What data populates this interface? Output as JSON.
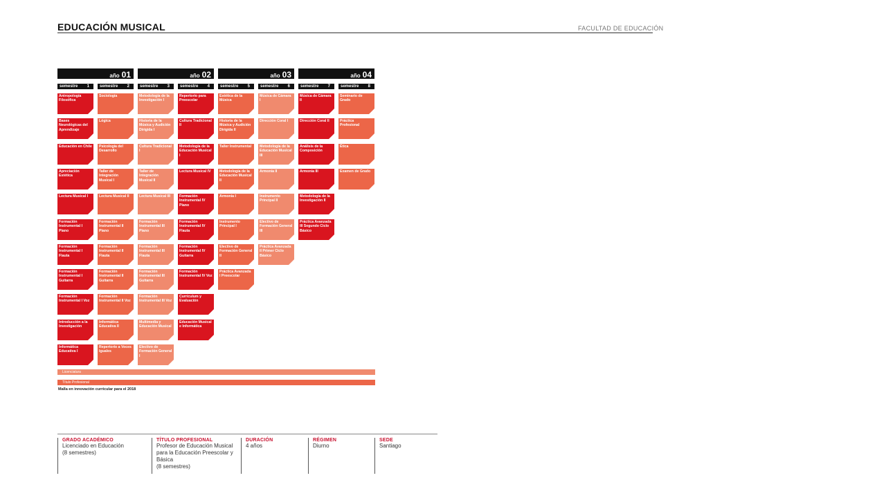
{
  "header": {
    "title": "EDUCACIÓN MUSICAL",
    "faculty": "FACULTAD DE EDUCACIÓN"
  },
  "years": [
    {
      "label": "año",
      "num": "01"
    },
    {
      "label": "año",
      "num": "02"
    },
    {
      "label": "año",
      "num": "03"
    },
    {
      "label": "año",
      "num": "04"
    }
  ],
  "semesters": [
    {
      "label": "semestre",
      "num": "1"
    },
    {
      "label": "semestre",
      "num": "2"
    },
    {
      "label": "semestre",
      "num": "3"
    },
    {
      "label": "semestre",
      "num": "4"
    },
    {
      "label": "semestre",
      "num": "5"
    },
    {
      "label": "semestre",
      "num": "6"
    },
    {
      "label": "semestre",
      "num": "7"
    },
    {
      "label": "semestre",
      "num": "8"
    }
  ],
  "colors": {
    "red": "#d9151f",
    "orange": "#ec6648",
    "salmon": "#f08a6e"
  },
  "curriculum": [
    [
      {
        "name": "Antropología Filosófica",
        "tone": "red"
      },
      {
        "name": "Bases Neurológicas del Aprendizaje",
        "tone": "red"
      },
      {
        "name": "Educación en Chile",
        "tone": "red"
      },
      {
        "name": "Apreciación Estética",
        "tone": "red"
      },
      {
        "name": "Lectura Musical I",
        "tone": "red"
      },
      {
        "name": "Formación Instrumental I Piano",
        "tone": "red"
      },
      {
        "name": "Formación Instrumental I Flauta",
        "tone": "red"
      },
      {
        "name": "Formación Instrumental I Guitarra",
        "tone": "red"
      },
      {
        "name": "Formación Instrumental I Voz",
        "tone": "red"
      },
      {
        "name": "Introducción a la Investigación",
        "tone": "red"
      },
      {
        "name": "Informática Educativa I",
        "tone": "red"
      }
    ],
    [
      {
        "name": "Sociología",
        "tone": "orange"
      },
      {
        "name": "Lógica",
        "tone": "orange"
      },
      {
        "name": "Psicología del Desarrollo",
        "tone": "orange"
      },
      {
        "name": "Taller de Integración Musical I",
        "tone": "orange"
      },
      {
        "name": "Lectura Musical II",
        "tone": "orange"
      },
      {
        "name": "Formación Instrumental II Piano",
        "tone": "orange"
      },
      {
        "name": "Formación Instrumental II Flauta",
        "tone": "orange"
      },
      {
        "name": "Formación Instrumental II Guitarra",
        "tone": "orange"
      },
      {
        "name": "Formación Instrumental II Voz",
        "tone": "orange"
      },
      {
        "name": "Informática Educativa II",
        "tone": "orange"
      },
      {
        "name": "Repertorio a Voces Iguales",
        "tone": "orange"
      }
    ],
    [
      {
        "name": "Metodología de la Investigación I",
        "tone": "salmon"
      },
      {
        "name": "Historia de la Música y Audición Dirigida I",
        "tone": "salmon"
      },
      {
        "name": "Cultura Tradicional I",
        "tone": "salmon"
      },
      {
        "name": "Taller de Integración Musical II",
        "tone": "salmon"
      },
      {
        "name": "Lectura Musical III",
        "tone": "salmon"
      },
      {
        "name": "Formación Instrumental III Piano",
        "tone": "salmon"
      },
      {
        "name": "Formación Instrumental III Flauta",
        "tone": "salmon"
      },
      {
        "name": "Formación Instrumental III Guitarra",
        "tone": "salmon"
      },
      {
        "name": "Formación Instrumental III Voz",
        "tone": "salmon"
      },
      {
        "name": "Multimedia y Educación Musical",
        "tone": "salmon"
      },
      {
        "name": "Electivo de Formación General I",
        "tone": "salmon"
      }
    ],
    [
      {
        "name": "Repertorio para Preescolar",
        "tone": "red"
      },
      {
        "name": "Cultura Tradicional II",
        "tone": "red"
      },
      {
        "name": "Metodología de la Educación Musical I",
        "tone": "red"
      },
      {
        "name": "Lectura Musical IV",
        "tone": "red"
      },
      {
        "name": "Formación Instrumental IV Piano",
        "tone": "red"
      },
      {
        "name": "Formación Instrumental IV Flauta",
        "tone": "red"
      },
      {
        "name": "Formación Instrumental IV Guitarra",
        "tone": "red"
      },
      {
        "name": "Formación Instrumental IV Voz",
        "tone": "red"
      },
      {
        "name": "Currículum y Evaluación",
        "tone": "red"
      },
      {
        "name": "Educación Musical e Informática",
        "tone": "red"
      }
    ],
    [
      {
        "name": "Estética de la Música",
        "tone": "orange"
      },
      {
        "name": "Historia de la Música y Audición Dirigida II",
        "tone": "orange"
      },
      {
        "name": "Taller Instrumental",
        "tone": "orange"
      },
      {
        "name": "Metodología de la Educación Musical II",
        "tone": "orange"
      },
      {
        "name": "Armonía I",
        "tone": "orange"
      },
      {
        "name": "Instrumento Principal I",
        "tone": "orange"
      },
      {
        "name": "Electivo de Formación General II",
        "tone": "orange"
      },
      {
        "name": "Práctica Avanzada I Preescolar",
        "tone": "orange"
      }
    ],
    [
      {
        "name": "Música de Cámara I",
        "tone": "salmon"
      },
      {
        "name": "Dirección Coral I",
        "tone": "salmon"
      },
      {
        "name": "Metodología de la Educación Musical III",
        "tone": "salmon"
      },
      {
        "name": "Armonía II",
        "tone": "salmon"
      },
      {
        "name": "Instrumento Principal II",
        "tone": "salmon"
      },
      {
        "name": "Electivo de Formación General III",
        "tone": "salmon"
      },
      {
        "name": "Práctica Avanzada II Primer Ciclo Básico",
        "tone": "salmon"
      }
    ],
    [
      {
        "name": "Música de Cámara II",
        "tone": "red"
      },
      {
        "name": "Dirección Coral II",
        "tone": "red"
      },
      {
        "name": "Análisis de la Composición",
        "tone": "red"
      },
      {
        "name": "Armonía III",
        "tone": "red"
      },
      {
        "name": "Metodología de la Investigación II",
        "tone": "red"
      },
      {
        "name": "Práctica Avanzada III Segundo Ciclo Básico",
        "tone": "red"
      }
    ],
    [
      {
        "name": "Seminario de Grado",
        "tone": "orange"
      },
      {
        "name": "Práctica Profesional",
        "tone": "orange"
      },
      {
        "name": "Ética",
        "tone": "orange"
      },
      {
        "name": "Examen de Grado",
        "tone": "orange"
      }
    ]
  ],
  "bands": {
    "licenciatura": "Licenciatura",
    "titulo": "Título Profesional"
  },
  "note": "Malla en innovación curricular para el 2018",
  "footer": [
    {
      "label": "GRADO ACADÉMICO",
      "value": "Licenciado en Educación\n(8 semestres)"
    },
    {
      "label": "TÍTULO PROFESIONAL",
      "value": "Profesor de Educación Musical\npara la Educación Preescolar y\nBásica\n(8 semestres)"
    },
    {
      "label": "DURACIÓN",
      "value": "4 años"
    },
    {
      "label": "RÉGIMEN",
      "value": "Diurno"
    },
    {
      "label": "SEDE",
      "value": "Santiago"
    }
  ]
}
